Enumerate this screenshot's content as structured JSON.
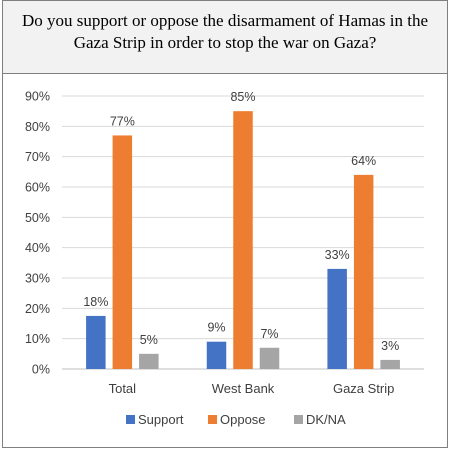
{
  "title": "Do you support or oppose the disarmament of Hamas in the Gaza Strip in order to stop the war on Gaza?",
  "chart_data": {
    "type": "bar",
    "title": "Do you support or oppose the disarmament of Hamas in the Gaza Strip in order to stop the war on Gaza?",
    "categories": [
      "Total",
      "West Bank",
      "Gaza Strip"
    ],
    "series": [
      {
        "name": "Support",
        "color": "#4472c4",
        "values": [
          18,
          9,
          33
        ],
        "labels": [
          "18%",
          "9%",
          "33%"
        ],
        "plot_values": [
          17.5,
          9,
          33
        ]
      },
      {
        "name": "Oppose",
        "color": "#ed7d31",
        "values": [
          77,
          85,
          64
        ],
        "labels": [
          "77%",
          "85%",
          "64%"
        ]
      },
      {
        "name": "DK/NA",
        "color": "#a5a5a5",
        "values": [
          5,
          7,
          3
        ],
        "labels": [
          "5%",
          "7%",
          "3%"
        ]
      }
    ],
    "y_ticks": [
      "0%",
      "10%",
      "20%",
      "30%",
      "40%",
      "50%",
      "60%",
      "70%",
      "80%",
      "90%"
    ],
    "ylim": [
      0,
      90
    ],
    "grid": true,
    "legend": "bottom"
  }
}
